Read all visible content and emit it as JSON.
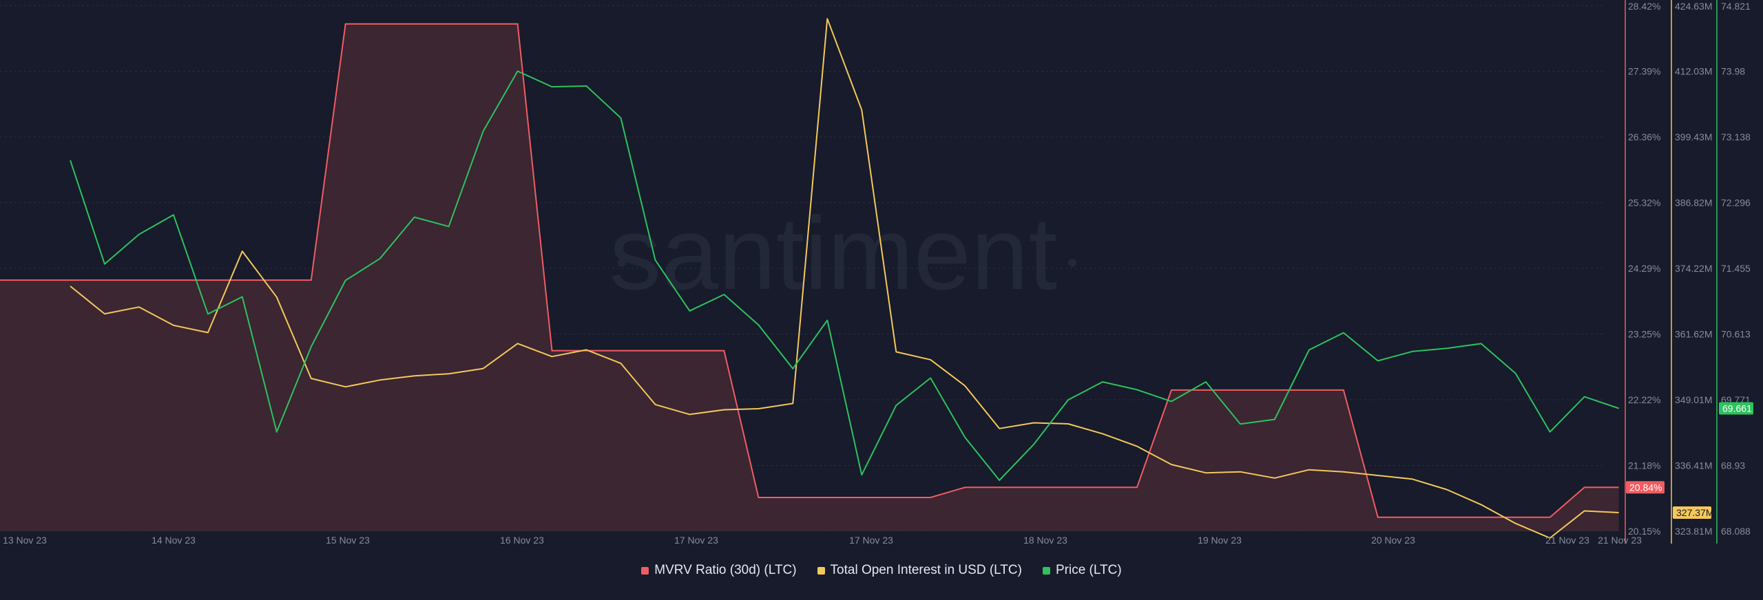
{
  "watermark": "santiment",
  "colors": {
    "background": "#171b2b",
    "mvrv": "#f25c61",
    "open_interest": "#f5c85a",
    "price": "#2ec25e",
    "grid": "#2a2f42",
    "axis_text": "#868c9e"
  },
  "legend": [
    {
      "label": "MVRV Ratio (30d) (LTC)",
      "color": "#f25c61"
    },
    {
      "label": "Total Open Interest in USD (LTC)",
      "color": "#f5c85a"
    },
    {
      "label": "Price (LTC)",
      "color": "#2ec25e"
    }
  ],
  "chart_data": {
    "type": "line",
    "x_ticks": [
      "13 Nov 23",
      "14 Nov 23",
      "15 Nov 23",
      "16 Nov 23",
      "17 Nov 23",
      "17 Nov 23",
      "18 Nov 23",
      "19 Nov 23",
      "20 Nov 23",
      "21 Nov 23",
      "21 Nov 23"
    ],
    "x_range": [
      0,
      47
    ],
    "grid": true,
    "legend_position": "bottom",
    "axes": [
      {
        "id": "mvrv",
        "range": [
          20.15,
          28.42
        ],
        "tick_labels": [
          "28.42%",
          "27.39%",
          "26.36%",
          "25.32%",
          "24.29%",
          "23.25%",
          "22.22%",
          "21.18%",
          "20.15%"
        ],
        "current_label": "20.84%"
      },
      {
        "id": "open_interest",
        "range": [
          323.81,
          424.63
        ],
        "tick_labels": [
          "424.63M",
          "412.03M",
          "399.43M",
          "386.82M",
          "374.22M",
          "361.62M",
          "349.01M",
          "336.41M",
          "323.81M"
        ],
        "current_label": "327.37M"
      },
      {
        "id": "price",
        "range": [
          68.088,
          74.821
        ],
        "tick_labels": [
          "74.821",
          "73.98",
          "73.138",
          "72.296",
          "71.455",
          "70.613",
          "69.771",
          "68.93",
          "68.088"
        ],
        "current_label": "69.661"
      }
    ],
    "series": [
      {
        "name": "MVRV Ratio (30d) (LTC)",
        "axis": "mvrv",
        "style": "step-area",
        "points": [
          [
            0,
            24.1
          ],
          [
            8,
            24.1
          ],
          [
            9,
            28.13
          ],
          [
            14,
            28.13
          ],
          [
            15,
            22.99
          ],
          [
            20,
            22.99
          ],
          [
            21,
            20.68
          ],
          [
            26,
            20.68
          ],
          [
            27,
            20.84
          ],
          [
            32,
            20.84
          ],
          [
            33,
            22.37
          ],
          [
            38,
            22.37
          ],
          [
            39,
            20.37
          ],
          [
            44,
            20.37
          ],
          [
            45,
            20.84
          ],
          [
            46,
            20.84
          ]
        ]
      },
      {
        "name": "Total Open Interest in USD (LTC)",
        "axis": "open_interest",
        "style": "line",
        "points": [
          [
            1,
            370.8
          ],
          [
            2,
            365.5
          ],
          [
            3,
            366.8
          ],
          [
            4,
            363.3
          ],
          [
            5,
            361.9
          ],
          [
            6,
            377.5
          ],
          [
            7,
            368.7
          ],
          [
            8,
            353.1
          ],
          [
            9,
            351.5
          ],
          [
            10,
            352.8
          ],
          [
            11,
            353.6
          ],
          [
            12,
            354.0
          ],
          [
            13,
            355.0
          ],
          [
            14,
            359.8
          ],
          [
            15,
            357.3
          ],
          [
            16,
            358.6
          ],
          [
            17,
            356.0
          ],
          [
            18,
            348.1
          ],
          [
            19,
            346.2
          ],
          [
            20,
            347.1
          ],
          [
            21,
            347.3
          ],
          [
            22,
            348.3
          ],
          [
            23,
            422.1
          ],
          [
            24,
            404.6
          ],
          [
            25,
            358.2
          ],
          [
            26,
            356.7
          ],
          [
            27,
            351.7
          ],
          [
            28,
            343.5
          ],
          [
            29,
            344.6
          ],
          [
            30,
            344.4
          ],
          [
            31,
            342.5
          ],
          [
            32,
            340.1
          ],
          [
            33,
            336.6
          ],
          [
            34,
            335.0
          ],
          [
            35,
            335.2
          ],
          [
            36,
            334.0
          ],
          [
            37,
            335.6
          ],
          [
            38,
            335.2
          ],
          [
            39,
            334.5
          ],
          [
            40,
            333.8
          ],
          [
            41,
            331.8
          ],
          [
            42,
            328.9
          ],
          [
            43,
            325.3
          ],
          [
            44,
            322.5
          ],
          [
            45,
            327.7
          ],
          [
            46,
            327.37
          ]
        ]
      },
      {
        "name": "Price (LTC)",
        "axis": "price",
        "style": "line",
        "points": [
          [
            1,
            72.84
          ],
          [
            2,
            71.51
          ],
          [
            3,
            71.89
          ],
          [
            4,
            72.14
          ],
          [
            5,
            70.87
          ],
          [
            6,
            71.09
          ],
          [
            7,
            69.36
          ],
          [
            8,
            70.45
          ],
          [
            9,
            71.3
          ],
          [
            10,
            71.58
          ],
          [
            11,
            72.11
          ],
          [
            12,
            71.99
          ],
          [
            13,
            73.21
          ],
          [
            14,
            73.98
          ],
          [
            15,
            73.78
          ],
          [
            16,
            73.79
          ],
          [
            17,
            73.38
          ],
          [
            18,
            71.56
          ],
          [
            19,
            70.91
          ],
          [
            20,
            71.12
          ],
          [
            21,
            70.73
          ],
          [
            22,
            70.17
          ],
          [
            23,
            70.79
          ],
          [
            24,
            68.81
          ],
          [
            25,
            69.7
          ],
          [
            26,
            70.05
          ],
          [
            27,
            69.29
          ],
          [
            28,
            68.74
          ],
          [
            29,
            69.2
          ],
          [
            30,
            69.77
          ],
          [
            31,
            70.0
          ],
          [
            32,
            69.9
          ],
          [
            33,
            69.75
          ],
          [
            34,
            70.0
          ],
          [
            35,
            69.46
          ],
          [
            36,
            69.52
          ],
          [
            37,
            70.41
          ],
          [
            38,
            70.63
          ],
          [
            39,
            70.27
          ],
          [
            40,
            70.39
          ],
          [
            41,
            70.43
          ],
          [
            42,
            70.49
          ],
          [
            43,
            70.11
          ],
          [
            44,
            69.36
          ],
          [
            45,
            69.81
          ],
          [
            46,
            69.661
          ]
        ]
      }
    ]
  }
}
